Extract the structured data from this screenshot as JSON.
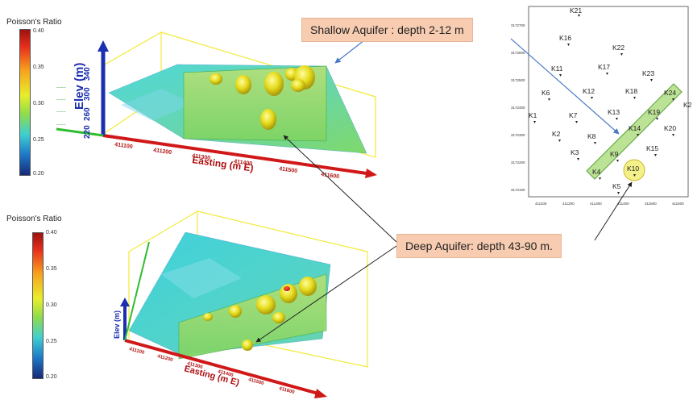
{
  "colorbars": {
    "top": {
      "title": "Poisson's Ratio",
      "max": "0.40",
      "t35": "0.35",
      "t30": "0.30",
      "t25": "0.25",
      "min": "0.20"
    },
    "bottom": {
      "title": "Poisson's Ratio",
      "max": "0.40",
      "t35": "0.35",
      "t30": "0.30",
      "t25": "0.25",
      "min": "0.20"
    }
  },
  "callouts": {
    "shallow": "Shallow Aquifer : depth 2-12 m",
    "deep": "Deep Aquifer: depth 43-90 m."
  },
  "plot_top": {
    "elev_label": "Elev (m)",
    "elev_ticks": [
      "220",
      "260",
      "300",
      "340"
    ],
    "easting_label": "Easting (m E)",
    "easting_ticks": [
      "411100",
      "411200",
      "411300",
      "411400",
      "411500",
      "411600"
    ]
  },
  "plot_bottom": {
    "elev_label": "Elev (m)",
    "easting_label": "Easting (m E)",
    "easting_ticks": [
      "411100",
      "411200",
      "411300",
      "411400",
      "411500",
      "411600"
    ]
  },
  "map": {
    "y_ticks": [
      "3172700",
      "3172600",
      "3172500",
      "3172400",
      "3172300",
      "3172200",
      "3172100"
    ],
    "x_ticks": [
      "411100",
      "411200",
      "411300",
      "411400",
      "411500",
      "411600"
    ],
    "wells": {
      "K1": "K1",
      "K2": "K2",
      "K3": "K3",
      "K4": "K4",
      "K5": "K5",
      "K6": "K6",
      "K7": "K7",
      "K8": "K8",
      "K9": "K9",
      "K10": "K10",
      "K11": "K11",
      "K12": "K12",
      "K13": "K13",
      "K14": "K14",
      "K15": "K15",
      "K16": "K16",
      "K17": "K17",
      "K18": "K18",
      "K19": "K19",
      "K20": "K20",
      "K21": "K21",
      "K22": "K22",
      "K23": "K23",
      "K24": "K24",
      "K25": "K2"
    }
  }
}
